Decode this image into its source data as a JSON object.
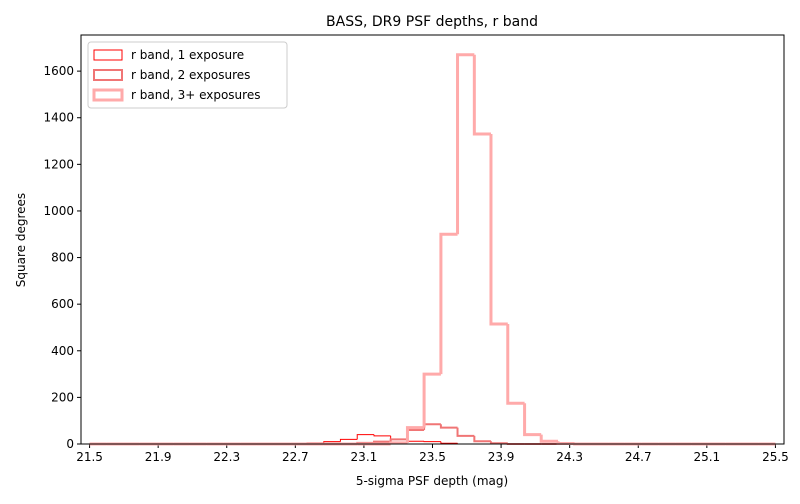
{
  "chart_data": {
    "type": "histogram",
    "title": "BASS, DR9 PSF depths, r band",
    "x_label": "5-sigma PSF depth (mag)",
    "y_label": "Square degrees",
    "bins": [
      21.5,
      21.598,
      21.695,
      21.793,
      21.89,
      21.988,
      22.085,
      22.183,
      22.28,
      22.378,
      22.476,
      22.573,
      22.671,
      22.768,
      22.866,
      22.963,
      23.061,
      23.159,
      23.256,
      23.354,
      23.451,
      23.549,
      23.646,
      23.744,
      23.841,
      23.939,
      24.037,
      24.134,
      24.232,
      24.329,
      24.427,
      24.524,
      24.622,
      24.72,
      24.817,
      24.915,
      25.012,
      25.11,
      25.207,
      25.305,
      25.402,
      25.5
    ],
    "series": [
      {
        "name": "r band, 1 exposure",
        "color": "#ff0000",
        "line_width": 1,
        "values": [
          0,
          0,
          0,
          0,
          0,
          0,
          0,
          0,
          0,
          0,
          0,
          1,
          2,
          5,
          10,
          20,
          40,
          35,
          20,
          12,
          10,
          3,
          0,
          0,
          0,
          0,
          0,
          0,
          0,
          0,
          0,
          0,
          0,
          0,
          0,
          0,
          0,
          0,
          0,
          0,
          0
        ]
      },
      {
        "name": "r band, 2 exposures",
        "color": "#f07575",
        "line_width": 2,
        "values": [
          0,
          0,
          0,
          0,
          0,
          0,
          0,
          0,
          0,
          0,
          0,
          0,
          0,
          0,
          0,
          2,
          5,
          10,
          20,
          60,
          85,
          70,
          35,
          12,
          3,
          0,
          0,
          0,
          0,
          0,
          0,
          0,
          0,
          0,
          0,
          0,
          0,
          0,
          0,
          0,
          0
        ]
      },
      {
        "name": "r band, 3+ exposures",
        "color": "#ffaaaa",
        "line_width": 3,
        "values": [
          0,
          0,
          0,
          0,
          0,
          0,
          0,
          0,
          0,
          0,
          0,
          0,
          0,
          0,
          0,
          0,
          0,
          0,
          5,
          70,
          300,
          900,
          1670,
          1330,
          515,
          175,
          40,
          12,
          2,
          0,
          0,
          0,
          0,
          0,
          0,
          0,
          0,
          0,
          0,
          0,
          0
        ]
      }
    ],
    "xlim": [
      21.45,
      25.55
    ],
    "ylim": [
      0,
      1755
    ],
    "xticks": [
      21.5,
      21.9,
      22.3,
      22.7,
      23.1,
      23.5,
      23.9,
      24.3,
      24.7,
      25.1,
      25.5
    ],
    "yticks": [
      0,
      200,
      400,
      600,
      800,
      1000,
      1200,
      1400,
      1600
    ],
    "legend": "upper left"
  }
}
